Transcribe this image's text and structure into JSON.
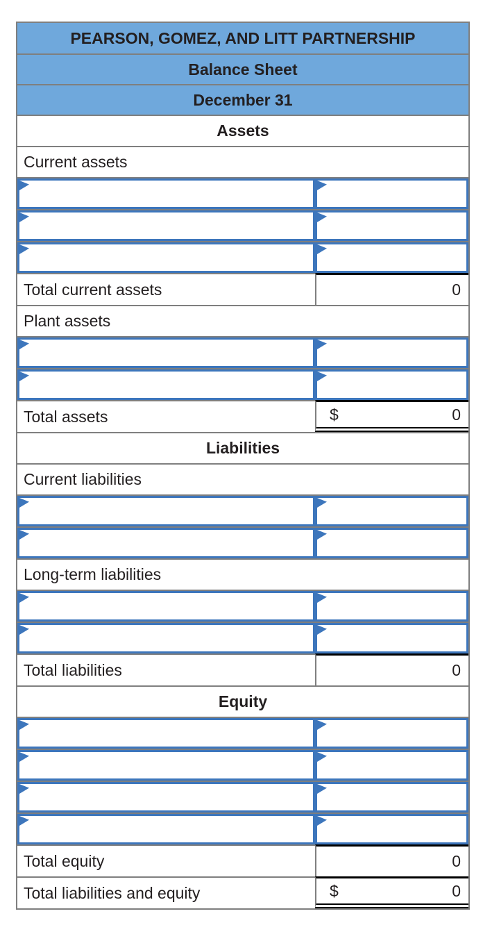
{
  "colors": {
    "header_bg": "#6FA8DC",
    "grid_border": "#7F7F7F",
    "input_border": "#3D76BC",
    "total_rule": "#000000"
  },
  "header": {
    "company": "PEARSON, GOMEZ, AND LITT PARTNERSHIP",
    "statement": "Balance Sheet",
    "date": "December 31"
  },
  "assets": {
    "section_label": "Assets",
    "current_assets_label": "Current assets",
    "total_current_assets_label": "Total current assets",
    "total_current_assets_value": "0",
    "plant_assets_label": "Plant assets",
    "total_assets_label": "Total assets",
    "total_assets_currency": "$",
    "total_assets_value": "0"
  },
  "liabilities": {
    "section_label": "Liabilities",
    "current_liabilities_label": "Current liabilities",
    "long_term_liabilities_label": "Long-term liabilities",
    "total_liabilities_label": "Total liabilities",
    "total_liabilities_value": "0"
  },
  "equity": {
    "section_label": "Equity",
    "total_equity_label": "Total equity",
    "total_equity_value": "0",
    "total_liabilities_and_equity_label": "Total liabilities and equity",
    "total_liabilities_and_equity_currency": "$",
    "total_liabilities_and_equity_value": "0"
  }
}
